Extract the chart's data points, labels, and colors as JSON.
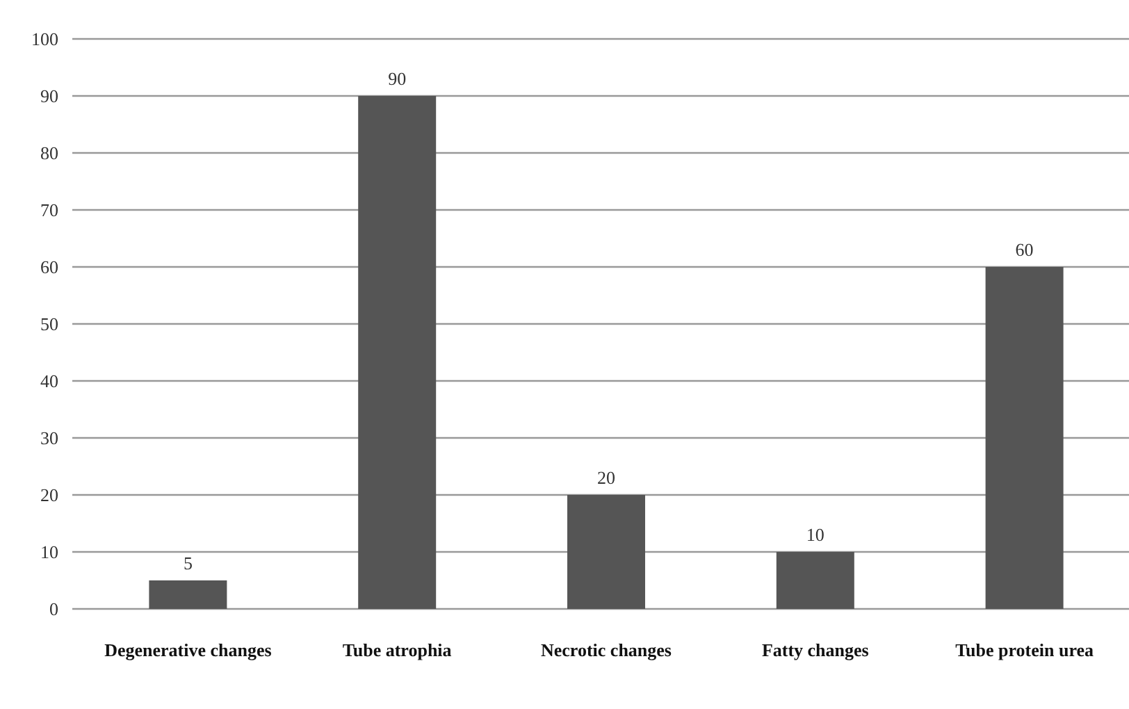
{
  "chart_data": {
    "type": "bar",
    "categories": [
      "Degenerative changes",
      "Tube atrophia",
      "Necrotic changes",
      "Fatty changes",
      "Tube protein urea"
    ],
    "values": [
      5,
      90,
      20,
      10,
      60
    ],
    "color": "#555555",
    "ylim": [
      0,
      100
    ],
    "yticks": [
      0,
      10,
      20,
      30,
      40,
      50,
      60,
      70,
      80,
      90,
      100
    ],
    "grid": "y",
    "data_labels": true
  }
}
